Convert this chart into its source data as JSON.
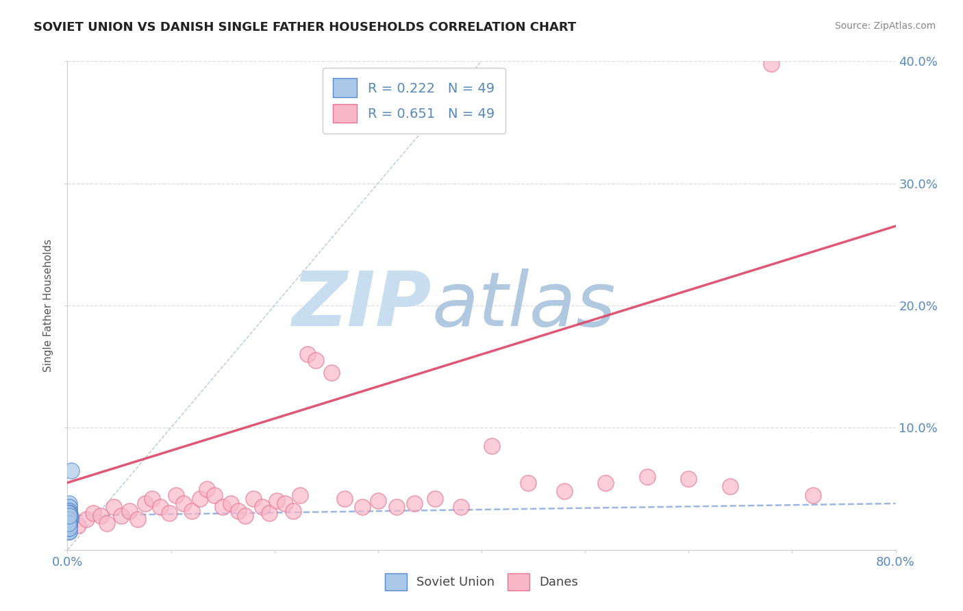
{
  "title": "SOVIET UNION VS DANISH SINGLE FATHER HOUSEHOLDS CORRELATION CHART",
  "source_text": "Source: ZipAtlas.com",
  "ylabel": "Single Father Households",
  "xlim": [
    0,
    0.8
  ],
  "ylim": [
    0,
    0.4
  ],
  "xticks": [
    0.0,
    0.1,
    0.2,
    0.3,
    0.4,
    0.5,
    0.6,
    0.7,
    0.8
  ],
  "yticks": [
    0.0,
    0.1,
    0.2,
    0.3,
    0.4
  ],
  "legend_r1": "R = 0.222",
  "legend_n1": "N = 49",
  "legend_r2": "R = 0.651",
  "legend_n2": "N = 49",
  "soviet_color": "#aac8e8",
  "danes_color": "#f8b8c8",
  "soviet_edge": "#5588cc",
  "danes_edge": "#e87090",
  "trendline_soviet_color": "#88aadd",
  "trendline_danes_color": "#dd4466",
  "diagonal_color": "#aab8cc",
  "watermark_zip_color": "#c8ddf0",
  "watermark_atlas_color": "#b0c8e0",
  "background_color": "#ffffff",
  "grid_color": "#dddddd",
  "title_color": "#222222",
  "axis_label_color": "#555555",
  "right_tick_color": "#5588bb",
  "bottom_tick_color": "#5588bb",
  "legend_text_color": "#5588bb",
  "soviet_x": [
    0.001,
    0.002,
    0.001,
    0.002,
    0.001,
    0.003,
    0.002,
    0.001,
    0.002,
    0.001,
    0.002,
    0.001,
    0.002,
    0.003,
    0.001,
    0.002,
    0.001,
    0.002,
    0.001,
    0.002,
    0.001,
    0.002,
    0.001,
    0.002,
    0.001,
    0.002,
    0.001,
    0.002,
    0.001,
    0.002,
    0.001,
    0.002,
    0.001,
    0.002,
    0.001,
    0.002,
    0.001,
    0.002,
    0.001,
    0.002,
    0.001,
    0.002,
    0.001,
    0.002,
    0.001,
    0.002,
    0.001,
    0.002,
    0.004
  ],
  "soviet_y": [
    0.03,
    0.035,
    0.025,
    0.03,
    0.02,
    0.028,
    0.033,
    0.022,
    0.038,
    0.025,
    0.03,
    0.018,
    0.035,
    0.025,
    0.028,
    0.022,
    0.032,
    0.027,
    0.02,
    0.015,
    0.025,
    0.03,
    0.018,
    0.022,
    0.028,
    0.032,
    0.02,
    0.025,
    0.015,
    0.03,
    0.022,
    0.027,
    0.018,
    0.024,
    0.03,
    0.02,
    0.025,
    0.015,
    0.028,
    0.022,
    0.018,
    0.025,
    0.03,
    0.02,
    0.025,
    0.018,
    0.022,
    0.028,
    0.065
  ],
  "danes_x": [
    0.01,
    0.018,
    0.025,
    0.032,
    0.038,
    0.045,
    0.052,
    0.06,
    0.068,
    0.075,
    0.082,
    0.09,
    0.098,
    0.105,
    0.112,
    0.12,
    0.128,
    0.135,
    0.142,
    0.15,
    0.158,
    0.165,
    0.172,
    0.18,
    0.188,
    0.195,
    0.202,
    0.21,
    0.218,
    0.225,
    0.232,
    0.24,
    0.255,
    0.268,
    0.285,
    0.3,
    0.318,
    0.335,
    0.355,
    0.38,
    0.41,
    0.445,
    0.48,
    0.52,
    0.56,
    0.6,
    0.64,
    0.68,
    0.72
  ],
  "danes_y": [
    0.02,
    0.025,
    0.03,
    0.028,
    0.022,
    0.035,
    0.028,
    0.032,
    0.025,
    0.038,
    0.042,
    0.035,
    0.03,
    0.045,
    0.038,
    0.032,
    0.042,
    0.05,
    0.045,
    0.035,
    0.038,
    0.032,
    0.028,
    0.042,
    0.035,
    0.03,
    0.04,
    0.038,
    0.032,
    0.045,
    0.16,
    0.155,
    0.145,
    0.042,
    0.035,
    0.04,
    0.035,
    0.038,
    0.042,
    0.035,
    0.085,
    0.055,
    0.048,
    0.055,
    0.06,
    0.058,
    0.052,
    0.398,
    0.045
  ],
  "danes_trendline_x0": 0.0,
  "danes_trendline_y0": 0.055,
  "danes_trendline_x1": 0.8,
  "danes_trendline_y1": 0.265,
  "soviet_trendline_x0": 0.0,
  "soviet_trendline_y0": 0.028,
  "soviet_trendline_x1": 0.8,
  "soviet_trendline_y1": 0.038
}
